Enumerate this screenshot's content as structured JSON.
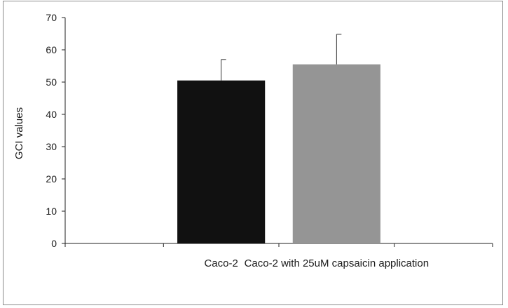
{
  "chart_data": {
    "type": "bar",
    "title": "",
    "xlabel": "",
    "ylabel": "GCI values",
    "ylim": [
      0,
      70
    ],
    "yticks": [
      0,
      10,
      20,
      30,
      40,
      50,
      60,
      70
    ],
    "grid": false,
    "legend": "none",
    "categories": [
      "Caco-2",
      "Caco-2 with 25uM capsaicin application"
    ],
    "values": [
      50.5,
      55.5
    ],
    "errors": [
      6.5,
      9.3
    ],
    "colors": [
      "#111111",
      "#959595"
    ]
  }
}
